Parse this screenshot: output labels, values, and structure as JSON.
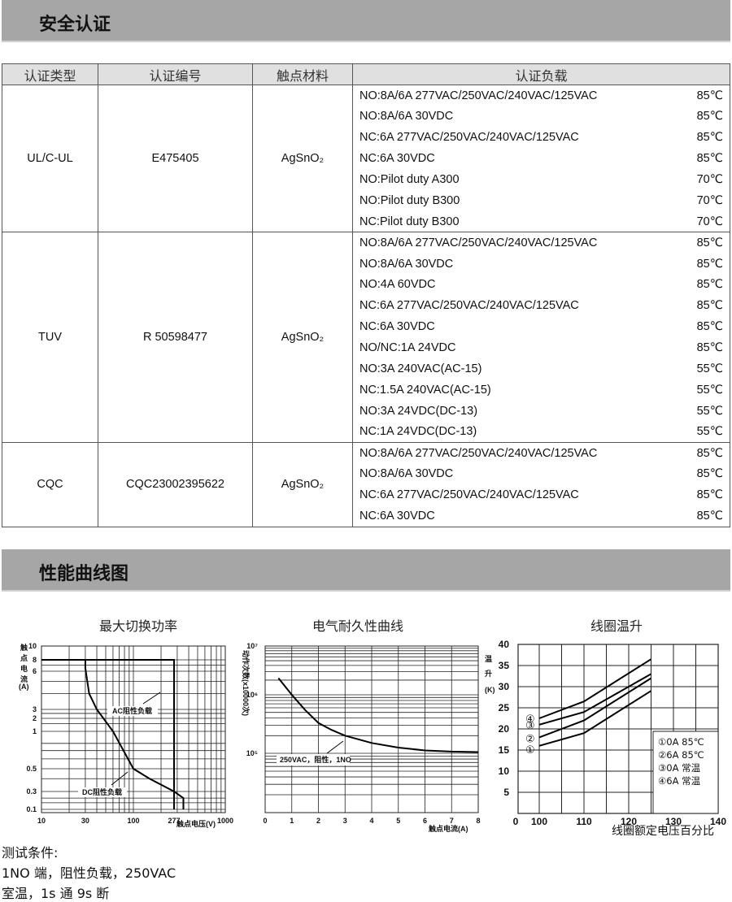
{
  "section1": {
    "title": "安全认证"
  },
  "table": {
    "headers": [
      "认证类型",
      "认证编号",
      "触点材料",
      "认证负载"
    ],
    "groups": [
      {
        "type": "UL/C-UL",
        "number": "E475405",
        "material": "AgSnO₂",
        "loads": [
          [
            "NO:8A/6A 277VAC/250VAC/240VAC/125VAC",
            "85℃"
          ],
          [
            "NO:8A/6A 30VDC",
            "85℃"
          ],
          [
            "NC:6A 277VAC/250VAC/240VAC/125VAC",
            "85℃"
          ],
          [
            "NC:6A 30VDC",
            "85℃"
          ],
          [
            "NO:Pilot duty A300",
            "70℃"
          ],
          [
            "NO:Pilot duty B300",
            "70℃"
          ],
          [
            "NC:Pilot duty B300",
            "70℃"
          ]
        ]
      },
      {
        "type": "TUV",
        "number": "R 50598477",
        "material": "AgSnO₂",
        "loads": [
          [
            "NO:8A/6A 277VAC/250VAC/240VAC/125VAC",
            "85℃"
          ],
          [
            "NO:8A/6A 30VDC",
            "85℃"
          ],
          [
            "NO:4A 60VDC",
            "85℃"
          ],
          [
            "NC:6A 277VAC/250VAC/240VAC/125VAC",
            "85℃"
          ],
          [
            "NC:6A 30VDC",
            "85℃"
          ],
          [
            "NO/NC:1A 24VDC",
            "85℃"
          ],
          [
            "NO:3A 240VAC(AC-15)",
            "55℃"
          ],
          [
            "NC:1.5A 240VAC(AC-15)",
            "55℃"
          ],
          [
            "NO:3A 24VDC(DC-13)",
            "55℃"
          ],
          [
            "NC:1A 24VDC(DC-13)",
            "55℃"
          ]
        ]
      },
      {
        "type": "CQC",
        "number": "CQC23002395622",
        "material": "AgSnO₂",
        "loads": [
          [
            "NO:8A/6A 277VAC/250VAC/240VAC/125VAC",
            "85℃"
          ],
          [
            "NO:8A/6A 30VDC",
            "85℃"
          ],
          [
            "NC:6A 277VAC/250VAC/240VAC/125VAC",
            "85℃"
          ],
          [
            "NC:6A 30VDC",
            "85℃"
          ]
        ]
      }
    ]
  },
  "section2": {
    "title": "性能曲线图"
  },
  "chart_data": [
    {
      "type": "line",
      "title": "最大切换功率",
      "ylabel": "触点电流(A)",
      "xlabel": "触点电压(V)",
      "x_scale": "log",
      "xlim": [
        10,
        1000
      ],
      "ylim": [
        0.1,
        10
      ],
      "x_ticks": [
        "10",
        "30",
        "100",
        "277",
        "1000"
      ],
      "y_ticks": [
        "10",
        "8",
        "6",
        "3",
        "2",
        "1",
        "0.5",
        "0.3",
        "0.1"
      ],
      "grid": true,
      "series": [
        {
          "name": "AC阻性负载",
          "x": [
            10,
            277,
            277
          ],
          "y": [
            8,
            8,
            0.1
          ]
        },
        {
          "name": "DC阻性负载",
          "x": [
            30,
            30,
            33,
            40,
            60,
            100,
            150,
            277,
            350,
            350
          ],
          "y": [
            8,
            6.5,
            4,
            3,
            1,
            0.5,
            0.4,
            0.3,
            0.2,
            0.1
          ]
        }
      ]
    },
    {
      "type": "line",
      "title": "电气耐久性曲线",
      "ylabel": "动作次数(x10000次)",
      "xlabel": "触点电流(A)",
      "y_scale": "log",
      "xlim": [
        0,
        8
      ],
      "x_ticks": [
        "0",
        "1",
        "2",
        "3",
        "4",
        "5",
        "6",
        "7",
        "8"
      ],
      "y_ticks": [
        "10⁷",
        "10⁶",
        "10⁵"
      ],
      "grid": true,
      "annotation": "250VAC，阻性，1NO",
      "series": [
        {
          "x": [
            0.5,
            1,
            1.5,
            2,
            2.5,
            3,
            4,
            5,
            6,
            7,
            8
          ],
          "y": [
            2200000,
            1000000,
            550000,
            330000,
            250000,
            200000,
            150000,
            125000,
            112000,
            107000,
            105000
          ]
        }
      ]
    },
    {
      "type": "line",
      "title": "线圈温升",
      "ylabel": "温升(K)",
      "xlabel": "线圈额定电压百分比",
      "xlim": [
        100,
        140
      ],
      "ylim": [
        0,
        40
      ],
      "x_ticks": [
        "0",
        "100",
        "110",
        "120",
        "130",
        "140"
      ],
      "y_ticks": [
        "40",
        "35",
        "30",
        "25",
        "20",
        "15",
        "10",
        "5"
      ],
      "grid": true,
      "legend_placement": "bottom-right",
      "series": [
        {
          "name": "①0A 85℃",
          "marker": "①",
          "x": [
            100,
            110,
            125
          ],
          "y": [
            16,
            19,
            29
          ]
        },
        {
          "name": "②6A 85℃",
          "marker": "②",
          "x": [
            100,
            110,
            125
          ],
          "y": [
            18,
            22,
            32
          ]
        },
        {
          "name": "③0A 常温",
          "marker": "③",
          "x": [
            100,
            110,
            125
          ],
          "y": [
            21,
            24,
            33
          ]
        },
        {
          "name": "④6A 常温",
          "marker": "④",
          "x": [
            100,
            110,
            125
          ],
          "y": [
            22.5,
            26.5,
            36.5
          ]
        }
      ]
    }
  ],
  "test_conditions": {
    "title": "测试条件:",
    "line1": "1NO 端，阻性负载，250VAC",
    "line2": "室温，1s 通 9s 断"
  }
}
